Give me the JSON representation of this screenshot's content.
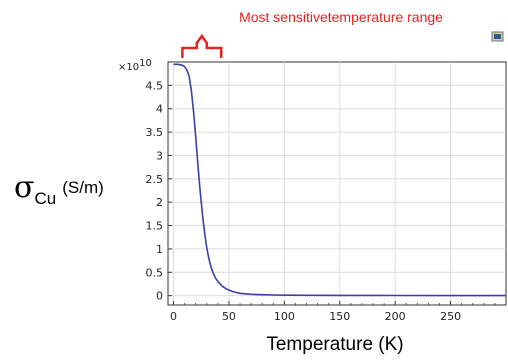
{
  "chart_data": {
    "type": "line",
    "annotation": "Most sensitivetemperature range",
    "xlabel": "Temperature (K)",
    "ylabel": {
      "symbol": "σ",
      "subscript": "Cu",
      "unit": "(S/m)"
    },
    "y_exponent": {
      "base": "×10",
      "power": "10"
    },
    "xlim": [
      -5,
      300
    ],
    "ylim": [
      -0.2,
      5.0
    ],
    "x_ticks": [
      0,
      50,
      100,
      150,
      200,
      250
    ],
    "y_ticks": [
      0,
      0.5,
      1,
      1.5,
      2,
      2.5,
      3,
      3.5,
      4,
      4.5
    ],
    "bracket_range": [
      8,
      43
    ],
    "grid": true,
    "colors": {
      "line": "#3a3fa5",
      "annotation": "#e8221c",
      "grid": "#dcdcdc"
    },
    "series": [
      {
        "x": [
          0,
          4,
          8,
          10,
          12,
          14,
          16,
          18,
          20,
          22,
          24,
          26,
          28,
          30,
          32,
          34,
          36,
          38,
          40,
          44,
          48,
          52,
          56,
          60,
          65,
          70,
          80,
          90,
          100,
          120,
          150,
          200,
          250,
          300
        ],
        "values": [
          4.95,
          4.95,
          4.93,
          4.9,
          4.83,
          4.7,
          4.4,
          3.95,
          3.4,
          2.8,
          2.25,
          1.75,
          1.35,
          1.02,
          0.78,
          0.6,
          0.47,
          0.37,
          0.3,
          0.2,
          0.14,
          0.1,
          0.07,
          0.05,
          0.04,
          0.03,
          0.02,
          0.015,
          0.01,
          0.008,
          0.005,
          0.003,
          0.002,
          0.001
        ]
      }
    ]
  }
}
